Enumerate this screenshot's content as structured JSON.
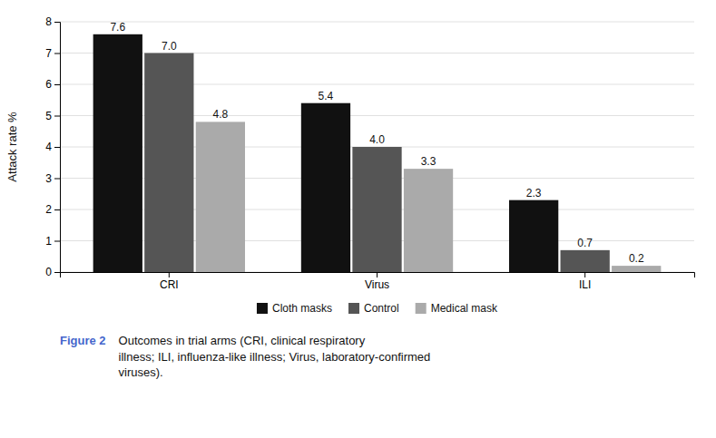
{
  "chart_data": {
    "type": "bar",
    "categories": [
      "CRI",
      "Virus",
      "ILI"
    ],
    "series": [
      {
        "name": "Cloth masks",
        "color": "#111111",
        "values": [
          7.6,
          5.4,
          2.3
        ]
      },
      {
        "name": "Control",
        "color": "#555555",
        "values": [
          7.0,
          4.0,
          0.7
        ],
        "value_labels": [
          "7.0",
          "4.0",
          "0.7"
        ]
      },
      {
        "name": "Medical mask",
        "color": "#aaaaaa",
        "values": [
          4.8,
          3.3,
          0.2
        ]
      }
    ],
    "ylabel": "Attack rate %",
    "ylim": [
      0,
      8
    ],
    "yticks": [
      0,
      1,
      2,
      3,
      4,
      5,
      6,
      7,
      8
    ],
    "grid": true,
    "legend": "bottom",
    "data_labels": true,
    "annotations": [
      {
        "text": "Figure 2",
        "color": "#4466cc"
      },
      {
        "text": "Outcomes in trial arms (CRI, clinical respiratory\nillness; ILI, influenza-like illness; Virus, laboratory-confirmed\nviruses)."
      }
    ]
  }
}
